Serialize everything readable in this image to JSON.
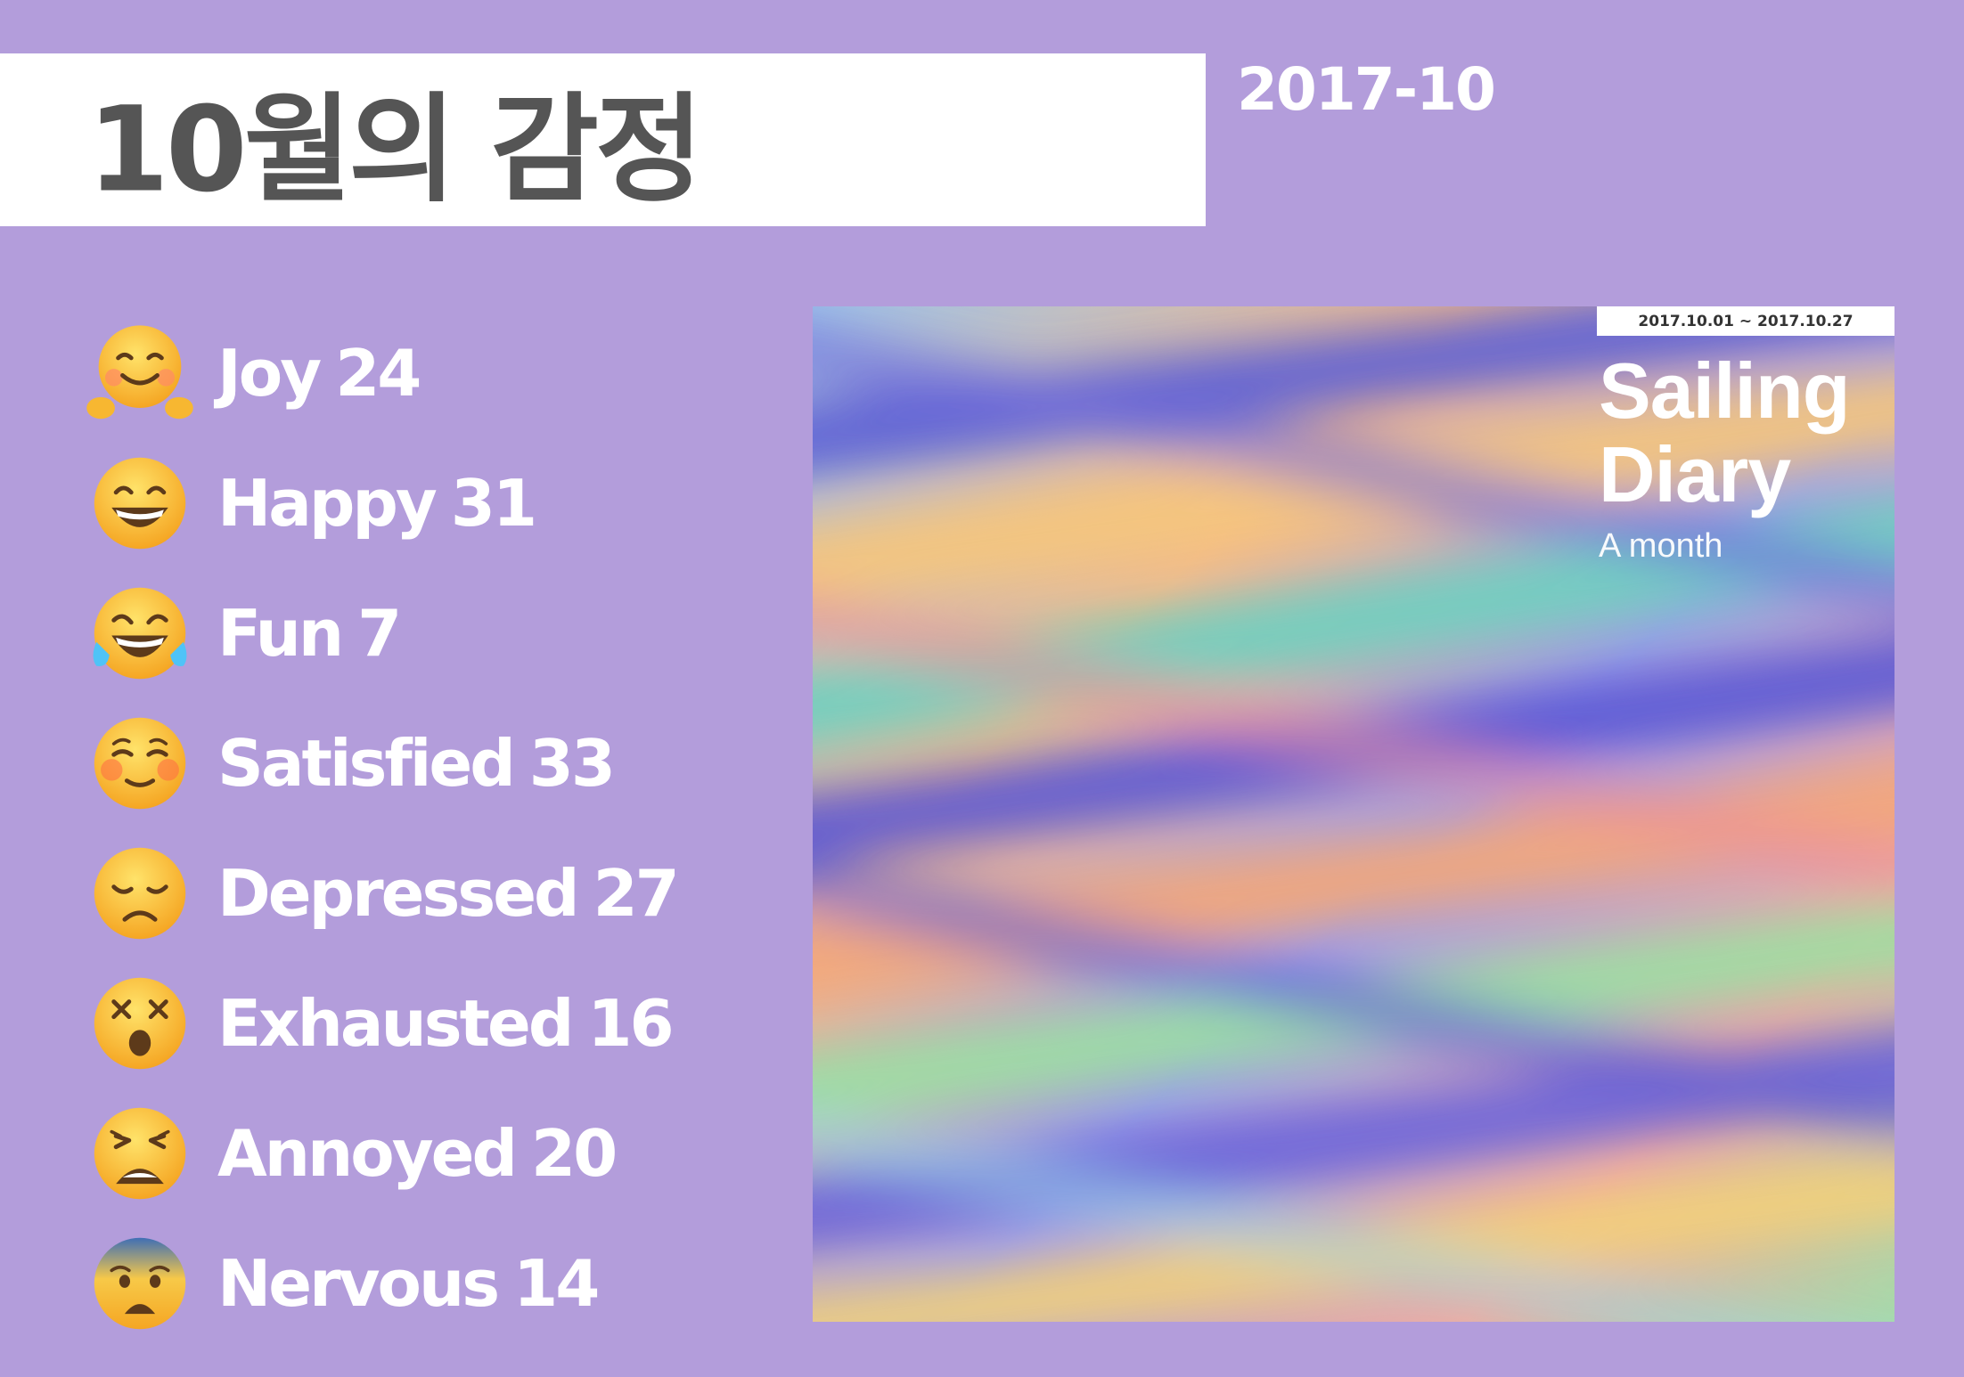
{
  "header": {
    "title": "10월의 감정",
    "period": "2017-10"
  },
  "emotions": [
    {
      "label": "Joy",
      "count": "24",
      "icon": "hugging-face-icon"
    },
    {
      "label": "Happy",
      "count": "31",
      "icon": "grinning-face-icon"
    },
    {
      "label": "Fun",
      "count": "7",
      "icon": "tears-of-joy-face-icon"
    },
    {
      "label": "Satisfied",
      "count": "33",
      "icon": "smiling-blush-face-icon"
    },
    {
      "label": "Depressed",
      "count": "27",
      "icon": "disappointed-face-icon"
    },
    {
      "label": "Exhausted",
      "count": "16",
      "icon": "dizzy-face-icon"
    },
    {
      "label": "Annoyed",
      "count": "20",
      "icon": "weary-face-icon"
    },
    {
      "label": "Nervous",
      "count": "14",
      "icon": "fearful-face-icon"
    }
  ],
  "cover": {
    "date_range": "2017.10.01 ~ 2017.10.27",
    "title_line1": "Sailing",
    "title_line2": "Diary",
    "subtitle": "A month"
  },
  "colors": {
    "background": "#b39ddb",
    "title_text": "#555555",
    "emoji_yellow": "#f7b731"
  }
}
